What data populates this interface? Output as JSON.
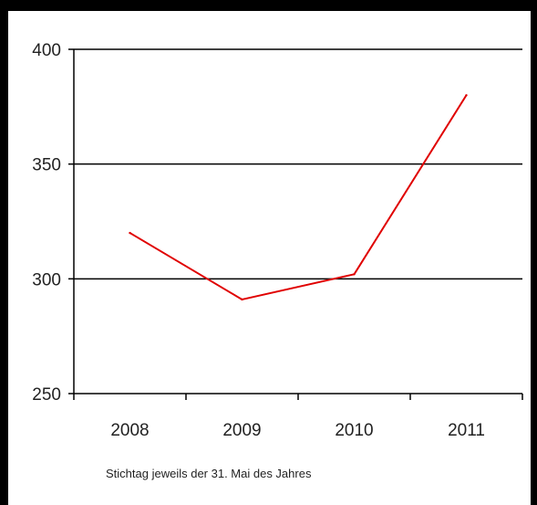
{
  "chart_data": {
    "type": "line",
    "title": "",
    "xlabel": "",
    "ylabel": "",
    "categories": [
      "2008",
      "2009",
      "2010",
      "2011"
    ],
    "series": [
      {
        "values": [
          320,
          291,
          302,
          380
        ],
        "color": "#e00000"
      }
    ],
    "ylim": [
      250,
      400
    ],
    "yticks": [
      "250",
      "300",
      "350",
      "400"
    ],
    "grid": true,
    "legend": "none",
    "footnote": "Stichtag jeweils der 31. Mai des Jahres"
  }
}
